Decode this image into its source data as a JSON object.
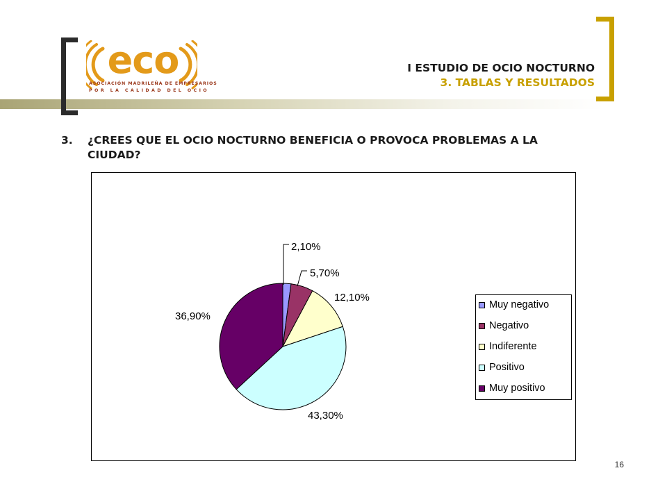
{
  "header": {
    "title_line1": "I ESTUDIO DE OCIO NOCTURNO",
    "title_line2": "3. TABLAS Y RESULTADOS"
  },
  "logo": {
    "word": "eco",
    "line1": "ASOCIACIÓN MADRILEÑA DE EMPRESARIOS",
    "line2": "POR LA CALIDAD DEL OCIO"
  },
  "question": {
    "number": "3.",
    "text": "¿CREES QUE EL OCIO NOCTURNO BENEFICIA O PROVOCA PROBLEMAS A LA CIUDAD?"
  },
  "page_number": "16",
  "colors": {
    "accent_gold": "#c8a000",
    "bracket_dark": "#2b2b2b",
    "logo_orange": "#e39a1a"
  },
  "chart_data": {
    "type": "pie",
    "legend_position": "right",
    "categories": [
      "Muy negativo",
      "Negativo",
      "Indiferente",
      "Positivo",
      "Muy positivo"
    ],
    "values": [
      2.1,
      5.7,
      12.1,
      43.3,
      36.9
    ],
    "data_labels": [
      "2,10%",
      "5,70%",
      "12,10%",
      "43,30%",
      "36,90%"
    ],
    "colors": [
      "#9999ff",
      "#993366",
      "#ffffcc",
      "#ccffff",
      "#660066"
    ]
  }
}
